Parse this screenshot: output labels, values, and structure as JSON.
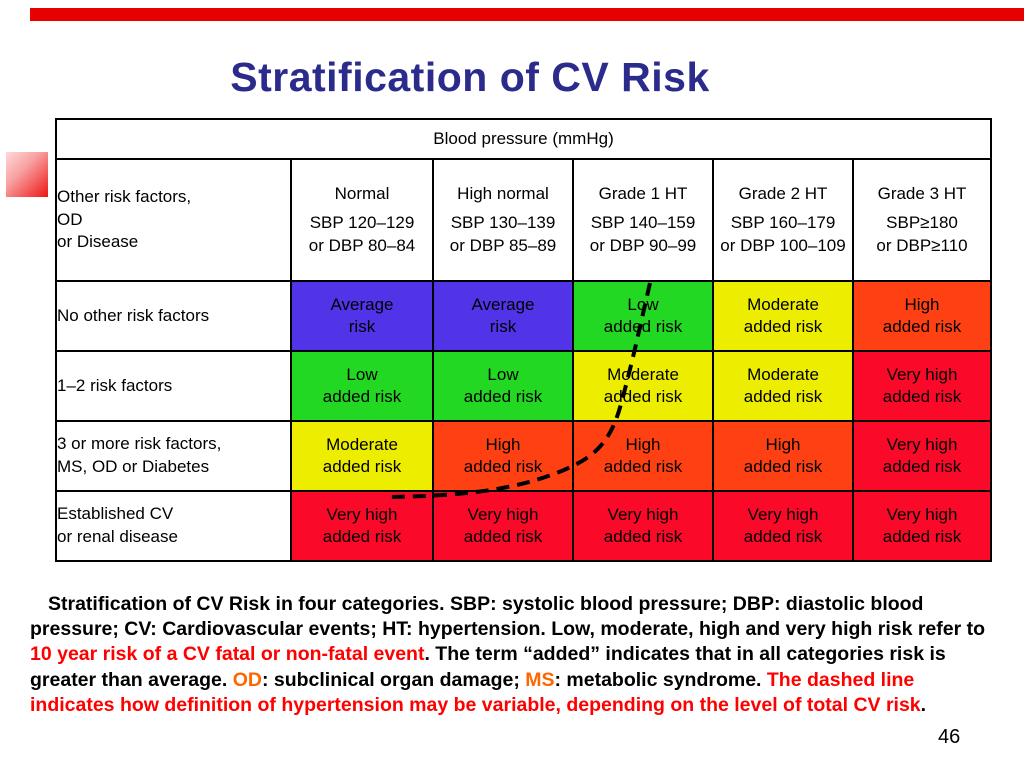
{
  "slide": {
    "title": "Stratification of CV Risk",
    "page_number": "46"
  },
  "colors": {
    "top_bar": "#E60000",
    "title": "#2B2B8C",
    "caption_red": "#FF0000",
    "caption_orange": "#FF6600",
    "cell_blue": "#5133E8",
    "cell_green": "#22D822",
    "cell_yellow": "#EDED00",
    "cell_orange": "#FF4013",
    "cell_red": "#FA0A28"
  },
  "table": {
    "bp_header": "Blood pressure (mmHg)",
    "corner": {
      "line1": "Other risk factors,",
      "line2": "OD",
      "line3": "or Disease"
    },
    "columns": [
      {
        "name": "Normal",
        "sbp": "SBP 120–129",
        "dbp": "or DBP 80–84"
      },
      {
        "name": "High normal",
        "sbp": "SBP 130–139",
        "dbp": "or DBP 85–89"
      },
      {
        "name": "Grade 1 HT",
        "sbp": "SBP 140–159",
        "dbp": "or DBP 90–99"
      },
      {
        "name": "Grade 2 HT",
        "sbp": "SBP 160–179",
        "dbp": "or DBP 100–109"
      },
      {
        "name": "Grade 3 HT",
        "sbp": "SBP≥180",
        "dbp": "or DBP≥110"
      }
    ],
    "rows": [
      {
        "label1": "No other risk factors",
        "label2": "",
        "cells": [
          {
            "line1": "Average",
            "line2": "risk",
            "color": "#5133E8"
          },
          {
            "line1": "Average",
            "line2": "risk",
            "color": "#5133E8"
          },
          {
            "line1": "Low",
            "line2": "added risk",
            "color": "#22D822"
          },
          {
            "line1": "Moderate",
            "line2": "added risk",
            "color": "#EDED00"
          },
          {
            "line1": "High",
            "line2": "added risk",
            "color": "#FF4013"
          }
        ]
      },
      {
        "label1": "1–2 risk factors",
        "label2": "",
        "cells": [
          {
            "line1": "Low",
            "line2": "added risk",
            "color": "#22D822"
          },
          {
            "line1": "Low",
            "line2": "added risk",
            "color": "#22D822"
          },
          {
            "line1": "Moderate",
            "line2": "added risk",
            "color": "#EDED00"
          },
          {
            "line1": "Moderate",
            "line2": "added risk",
            "color": "#EDED00"
          },
          {
            "line1": "Very high",
            "line2": "added risk",
            "color": "#FA0A28"
          }
        ]
      },
      {
        "label1": "3 or more risk factors,",
        "label2": "MS, OD or Diabetes",
        "cells": [
          {
            "line1": "Moderate",
            "line2": "added risk",
            "color": "#EDED00"
          },
          {
            "line1": "High",
            "line2": "added risk",
            "color": "#FF4013"
          },
          {
            "line1": "High",
            "line2": "added risk",
            "color": "#FF4013"
          },
          {
            "line1": "High",
            "line2": "added risk",
            "color": "#FF4013"
          },
          {
            "line1": "Very high",
            "line2": "added risk",
            "color": "#FA0A28"
          }
        ]
      },
      {
        "label1": "Established CV",
        "label2": "or renal disease",
        "cells": [
          {
            "line1": "Very high",
            "line2": "added risk",
            "color": "#FA0A28"
          },
          {
            "line1": "Very high",
            "line2": "added risk",
            "color": "#FA0A28"
          },
          {
            "line1": "Very high",
            "line2": "added risk",
            "color": "#FA0A28"
          },
          {
            "line1": "Very high",
            "line2": "added risk",
            "color": "#FA0A28"
          },
          {
            "line1": "Very high",
            "line2": "added risk",
            "color": "#FA0A28"
          }
        ]
      }
    ]
  },
  "caption": {
    "segments": [
      {
        "text": "Stratification of CV Risk in four categories. SBP: systolic blood pressure; DBP: diastolic blood pressure; CV: Cardiovascular events; HT: hypertension. Low, moderate, high and very high risk refer to ",
        "color": "#000000"
      },
      {
        "text": "10 year risk of a CV fatal or non-fatal event",
        "color": "#FF0000"
      },
      {
        "text": ". The term “added” indicates that in all categories risk is greater than average. ",
        "color": "#000000"
      },
      {
        "text": "OD",
        "color": "#FF6600"
      },
      {
        "text": ": subclinical organ damage; ",
        "color": "#000000"
      },
      {
        "text": "MS",
        "color": "#FF6600"
      },
      {
        "text": ": metabolic syndrome. ",
        "color": "#000000"
      },
      {
        "text": "The dashed line indicates how definition of hypertension may be variable, depending on the level of total CV risk",
        "color": "#FF0000"
      },
      {
        "text": ".",
        "color": "#000000"
      }
    ]
  }
}
